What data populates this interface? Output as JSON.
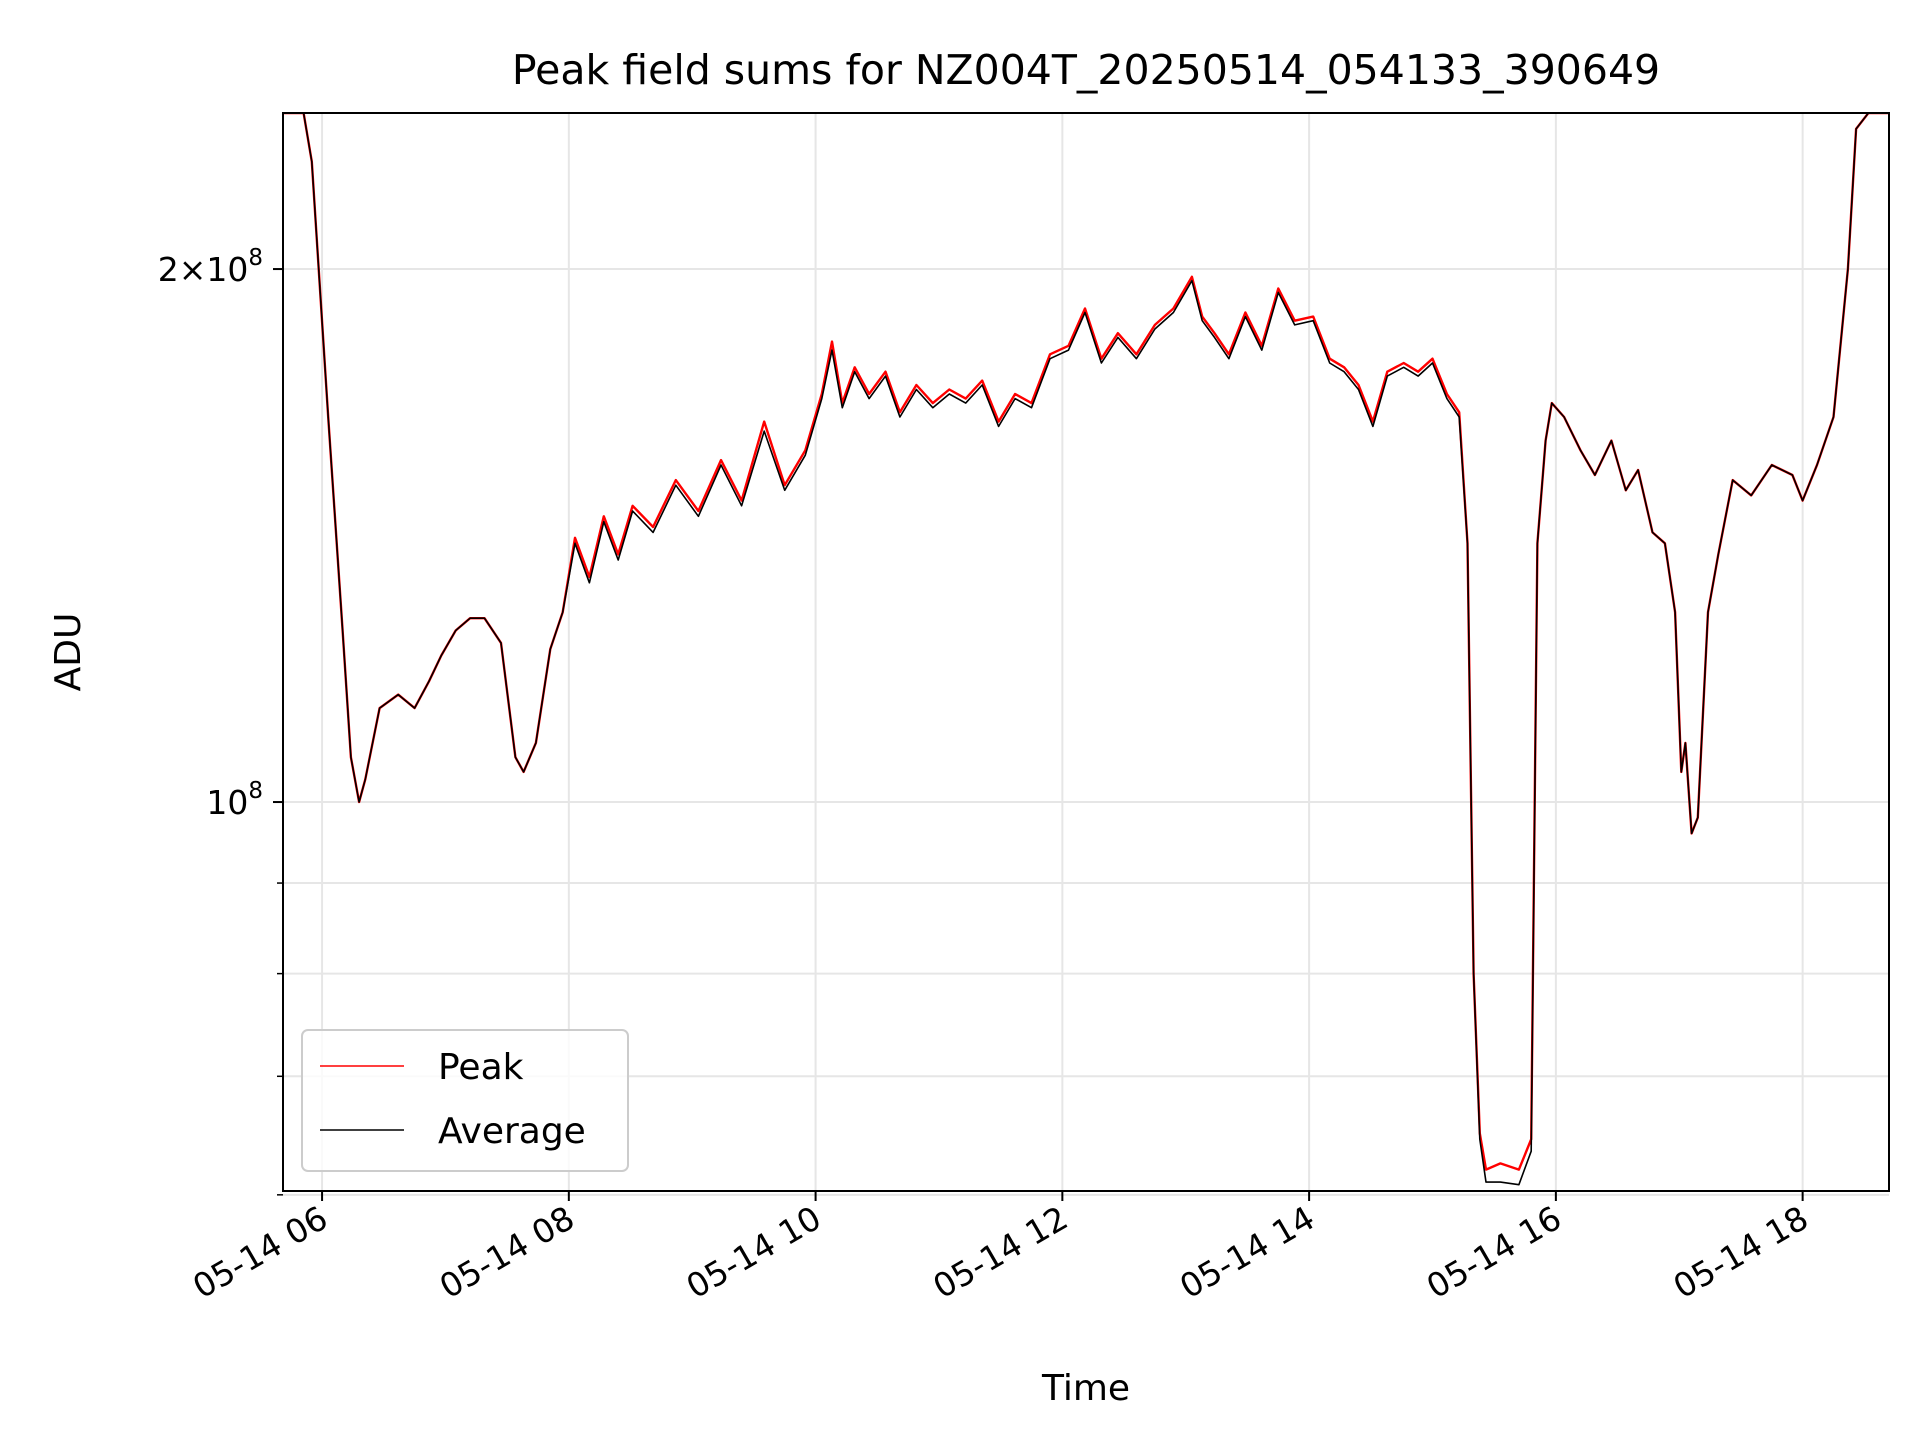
{
  "chart_data": {
    "type": "line",
    "title": "Peak field sums for NZ004T_20250514_054133_390649",
    "xlabel": "Time",
    "ylabel": "ADU",
    "y_scale": "log",
    "grid": true,
    "legend_placement": "lower-left",
    "x_ticks": [
      "05-14 06",
      "05-14 08",
      "05-14 10",
      "05-14 12",
      "05-14 14",
      "05-14 16",
      "05-14 18"
    ],
    "y_ticks": [
      {
        "value": 100000000,
        "base": "10",
        "exp": "8",
        "mantissa": ""
      },
      {
        "value": 200000000,
        "base": "10",
        "exp": "8",
        "mantissa": "2×"
      }
    ],
    "xlim": [
      "2025-05-14T05:41",
      "2025-05-14T18:42"
    ],
    "ylim": [
      60300000,
      245000000
    ],
    "x": [
      "05:41",
      "05:51",
      "05:55",
      "06:03",
      "06:10",
      "06:14",
      "06:18",
      "06:21",
      "06:28",
      "06:37",
      "06:45",
      "06:52",
      "06:58",
      "07:05",
      "07:12",
      "07:19",
      "07:27",
      "07:34",
      "07:38",
      "07:44",
      "07:51",
      "07:57",
      "08:03",
      "08:10",
      "08:17",
      "08:24",
      "08:31",
      "08:41",
      "08:52",
      "09:03",
      "09:14",
      "09:24",
      "09:35",
      "09:45",
      "09:55",
      "10:03",
      "10:08",
      "10:13",
      "10:19",
      "10:26",
      "10:34",
      "10:41",
      "10:49",
      "10:57",
      "11:05",
      "11:13",
      "11:21",
      "11:29",
      "11:37",
      "11:45",
      "11:54",
      "12:03",
      "12:11",
      "12:19",
      "12:27",
      "12:36",
      "12:45",
      "12:54",
      "13:03",
      "13:08",
      "13:14",
      "13:21",
      "13:29",
      "13:37",
      "13:45",
      "13:53",
      "14:02",
      "14:10",
      "14:17",
      "14:24",
      "14:31",
      "14:38",
      "14:46",
      "14:53",
      "15:00",
      "15:07",
      "15:13",
      "15:17",
      "15:20",
      "15:23",
      "15:26",
      "15:33",
      "15:42",
      "15:48",
      "15:51",
      "15:55",
      "15:58",
      "16:04",
      "16:12",
      "16:19",
      "16:27",
      "16:34",
      "16:40",
      "16:47",
      "16:53",
      "16:58",
      "17:01",
      "17:03",
      "17:06",
      "17:09",
      "17:14",
      "17:19",
      "17:26",
      "17:35",
      "17:45",
      "17:55",
      "18:00",
      "18:07",
      "18:15",
      "18:22",
      "18:26",
      "18:32",
      "18:42"
    ],
    "series": [
      {
        "name": "Peak",
        "color": "#ff0000",
        "values": [
          245000000,
          245000000,
          230000000,
          165000000,
          125000000,
          106000000,
          100000000,
          103000000,
          113000000,
          115000000,
          113000000,
          117000000,
          121000000,
          125000000,
          127000000,
          127000000,
          123000000,
          106000000,
          104000000,
          108000000,
          122000000,
          128000000,
          141000000,
          134000000,
          145000000,
          138000000,
          147000000,
          143000000,
          152000000,
          146000000,
          156000000,
          148000000,
          164000000,
          151000000,
          158000000,
          170000000,
          182000000,
          168000000,
          176000000,
          170000000,
          175000000,
          166000000,
          172000000,
          168000000,
          171000000,
          169000000,
          173000000,
          164000000,
          170000000,
          168000000,
          179000000,
          181000000,
          190000000,
          178000000,
          184000000,
          179000000,
          186000000,
          190000000,
          198000000,
          188000000,
          184000000,
          179000000,
          189000000,
          181000000,
          195000000,
          187000000,
          188000000,
          178000000,
          176000000,
          172000000,
          164000000,
          175000000,
          177000000,
          175000000,
          178000000,
          170000000,
          166000000,
          140000000,
          80000000,
          65000000,
          62000000,
          62500000,
          62000000,
          64500000,
          140000000,
          160000000,
          168000000,
          165000000,
          158000000,
          153000000,
          160000000,
          150000000,
          154000000,
          142000000,
          140000000,
          128000000,
          104000000,
          108000000,
          96000000,
          98000000,
          128000000,
          138000000,
          152000000,
          149000000,
          155000000,
          153000000,
          148000000,
          155000000,
          165000000,
          200000000,
          240000000,
          245000000,
          245000000
        ]
      },
      {
        "name": "Average",
        "color": "#000000",
        "values": [
          245000000,
          245000000,
          230000000,
          165000000,
          125000000,
          106000000,
          100000000,
          103000000,
          113000000,
          115000000,
          113000000,
          117000000,
          121000000,
          125000000,
          127000000,
          127000000,
          123000000,
          106000000,
          104000000,
          108000000,
          122000000,
          128000000,
          140000000,
          133000000,
          144000000,
          137000000,
          146000000,
          142000000,
          151000000,
          145000000,
          155000000,
          147000000,
          162000000,
          150000000,
          157000000,
          169000000,
          180000000,
          167000000,
          175000000,
          169000000,
          174000000,
          165000000,
          171000000,
          167000000,
          170000000,
          168000000,
          172000000,
          163000000,
          169000000,
          167000000,
          178000000,
          180000000,
          189000000,
          177000000,
          183000000,
          178000000,
          185000000,
          189000000,
          197000000,
          187000000,
          183000000,
          178000000,
          188000000,
          180000000,
          194000000,
          186000000,
          187000000,
          177000000,
          175000000,
          171000000,
          163000000,
          174000000,
          176000000,
          174000000,
          177000000,
          169000000,
          165000000,
          140000000,
          80000000,
          64500000,
          61000000,
          61000000,
          60800000,
          63500000,
          140000000,
          160000000,
          168000000,
          165000000,
          158000000,
          153000000,
          160000000,
          150000000,
          154000000,
          142000000,
          140000000,
          128000000,
          104000000,
          108000000,
          96000000,
          98000000,
          128000000,
          138000000,
          152000000,
          149000000,
          155000000,
          153000000,
          148000000,
          155000000,
          165000000,
          200000000,
          240000000,
          245000000,
          245000000
        ]
      }
    ]
  }
}
